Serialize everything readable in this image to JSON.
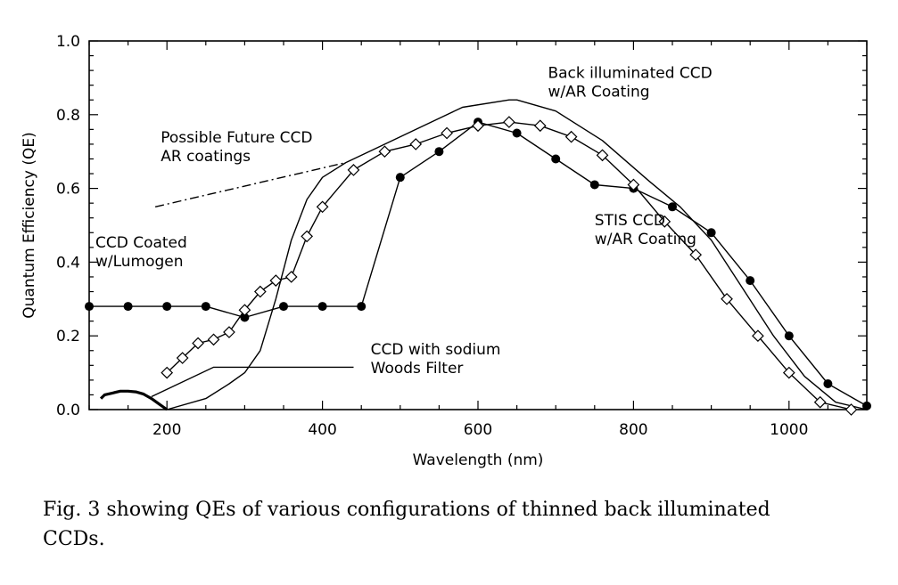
{
  "chart_data": {
    "type": "line",
    "xlabel": "Wavelength (nm)",
    "ylabel": "Quantum Efficiency (QE)",
    "xlim": [
      100,
      1100
    ],
    "ylim": [
      0.0,
      1.0
    ],
    "x_ticks": [
      200,
      400,
      600,
      800,
      1000
    ],
    "y_ticks": [
      "0.0",
      "0.2",
      "0.4",
      "0.6",
      "0.8",
      "1.0"
    ],
    "series": [
      {
        "name": "Back illuminated CCD w/AR Coating",
        "marker": "none",
        "x": [
          200,
          250,
          280,
          300,
          320,
          340,
          360,
          380,
          400,
          430,
          470,
          520,
          580,
          640,
          650,
          700,
          760,
          820,
          860,
          900,
          940,
          980,
          1020,
          1060,
          1100
        ],
        "y": [
          0.0,
          0.03,
          0.07,
          0.1,
          0.16,
          0.3,
          0.46,
          0.57,
          0.63,
          0.67,
          0.71,
          0.76,
          0.82,
          0.84,
          0.84,
          0.81,
          0.73,
          0.62,
          0.55,
          0.46,
          0.33,
          0.2,
          0.09,
          0.02,
          0.0
        ]
      },
      {
        "name": "STIS CCD w/AR Coating",
        "marker": "filled-circle",
        "x": [
          100,
          150,
          200,
          250,
          300,
          350,
          400,
          450,
          500,
          550,
          600,
          650,
          700,
          750,
          800,
          850,
          900,
          950,
          1000,
          1050,
          1100
        ],
        "y": [
          0.28,
          0.28,
          0.28,
          0.28,
          0.25,
          0.28,
          0.28,
          0.28,
          0.63,
          0.7,
          0.78,
          0.75,
          0.68,
          0.61,
          0.6,
          0.55,
          0.48,
          0.35,
          0.2,
          0.07,
          0.01
        ]
      },
      {
        "name": "CCD Coated w/Lumogen",
        "marker": "open-diamond",
        "x": [
          200,
          220,
          240,
          260,
          280,
          300,
          320,
          340,
          360,
          380,
          400,
          440,
          480,
          520,
          560,
          600,
          640,
          680,
          720,
          760,
          800,
          840,
          880,
          920,
          960,
          1000,
          1040,
          1080
        ],
        "y": [
          0.1,
          0.14,
          0.18,
          0.19,
          0.21,
          0.27,
          0.32,
          0.35,
          0.36,
          0.47,
          0.55,
          0.65,
          0.7,
          0.72,
          0.75,
          0.77,
          0.78,
          0.77,
          0.74,
          0.69,
          0.61,
          0.51,
          0.42,
          0.3,
          0.2,
          0.1,
          0.02,
          0.0
        ]
      },
      {
        "name": "CCD with sodium Woods Filter",
        "marker": "none",
        "x": [
          115,
          120,
          130,
          140,
          150,
          160,
          170,
          180,
          190,
          200
        ],
        "y": [
          0.03,
          0.04,
          0.045,
          0.05,
          0.05,
          0.048,
          0.042,
          0.03,
          0.015,
          0.0
        ]
      },
      {
        "name": "Possible Future CCD AR coatings",
        "marker": "none",
        "dash": "dash-dot",
        "x": [
          185,
          430
        ],
        "y": [
          0.55,
          0.67
        ]
      }
    ],
    "annotations": [
      {
        "id": "back",
        "lines": [
          "Back illuminated CCD",
          "w/AR Coating"
        ],
        "x": 690,
        "y": 0.9
      },
      {
        "id": "future",
        "lines": [
          "Possible Future CCD",
          "AR coatings"
        ],
        "x": 192,
        "y": 0.725
      },
      {
        "id": "stis",
        "lines": [
          "STIS CCD",
          "w/AR Coating"
        ],
        "x": 750,
        "y": 0.5
      },
      {
        "id": "lumogen",
        "lines": [
          "CCD Coated",
          "w/Lumogen"
        ],
        "x": 108,
        "y": 0.44
      },
      {
        "id": "woods",
        "lines": [
          "CCD with sodium",
          "Woods Filter"
        ],
        "x": 462,
        "y": 0.15
      }
    ],
    "leader_lines": [
      {
        "id": "woods-leader",
        "points": [
          [
            180,
            0.035
          ],
          [
            260,
            0.115
          ],
          [
            440,
            0.115
          ]
        ]
      }
    ]
  },
  "caption": {
    "line1": "Fig. 3 showing QEs of various configurations of thinned back illuminated",
    "line2": "CCDs."
  }
}
